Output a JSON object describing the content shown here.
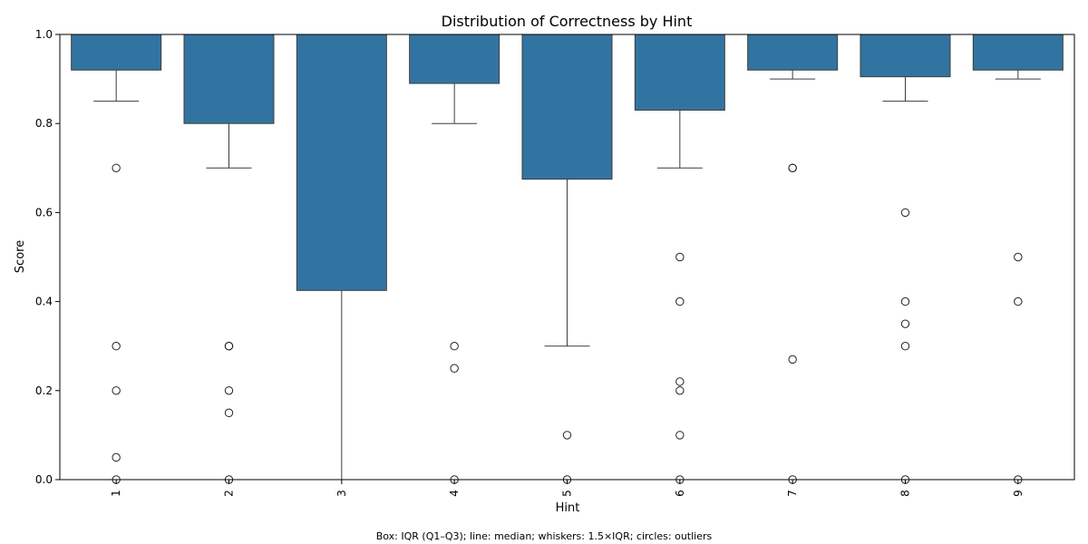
{
  "chart_data": {
    "type": "boxplot",
    "title": "Distribution of Correctness by Hint",
    "xlabel": "Hint",
    "ylabel": "Score",
    "caption": "Box: IQR (Q1–Q3); line: median; whiskers: 1.5×IQR; circles: outliers",
    "ylim": [
      0,
      1
    ],
    "yticks": [
      "0.0",
      "0.2",
      "0.4",
      "0.6",
      "0.8",
      "1.0"
    ],
    "box_color": "#3274a1",
    "categories": [
      "1",
      "2",
      "3",
      "4",
      "5",
      "6",
      "7",
      "8",
      "9"
    ],
    "boxes": [
      {
        "q1": 0.92,
        "median": 1.0,
        "q3": 1.0,
        "whisker_low": 0.85,
        "whisker_high": 1.0,
        "outliers": [
          0.7,
          0.3,
          0.2,
          0.05,
          0.0
        ]
      },
      {
        "q1": 0.8,
        "median": 1.0,
        "q3": 1.0,
        "whisker_low": 0.7,
        "whisker_high": 1.0,
        "outliers": [
          0.3,
          0.3,
          0.2,
          0.15,
          0.0
        ]
      },
      {
        "q1": 0.425,
        "median": 1.0,
        "q3": 1.0,
        "whisker_low": 0.0,
        "whisker_high": 1.0,
        "outliers": []
      },
      {
        "q1": 0.89,
        "median": 1.0,
        "q3": 1.0,
        "whisker_low": 0.8,
        "whisker_high": 1.0,
        "outliers": [
          0.3,
          0.25,
          0.0
        ]
      },
      {
        "q1": 0.675,
        "median": 1.0,
        "q3": 1.0,
        "whisker_low": 0.3,
        "whisker_high": 1.0,
        "outliers": [
          0.1,
          0.0
        ]
      },
      {
        "q1": 0.83,
        "median": 1.0,
        "q3": 1.0,
        "whisker_low": 0.7,
        "whisker_high": 1.0,
        "outliers": [
          0.5,
          0.4,
          0.22,
          0.2,
          0.1,
          0.0
        ]
      },
      {
        "q1": 0.92,
        "median": 1.0,
        "q3": 1.0,
        "whisker_low": 0.9,
        "whisker_high": 1.0,
        "outliers": [
          0.7,
          0.7,
          0.27,
          0.0
        ]
      },
      {
        "q1": 0.905,
        "median": 1.0,
        "q3": 1.0,
        "whisker_low": 0.85,
        "whisker_high": 1.0,
        "outliers": [
          0.6,
          0.4,
          0.35,
          0.3,
          0.0
        ]
      },
      {
        "q1": 0.92,
        "median": 1.0,
        "q3": 1.0,
        "whisker_low": 0.9,
        "whisker_high": 1.0,
        "outliers": [
          0.5,
          0.4,
          0.0
        ]
      }
    ]
  }
}
